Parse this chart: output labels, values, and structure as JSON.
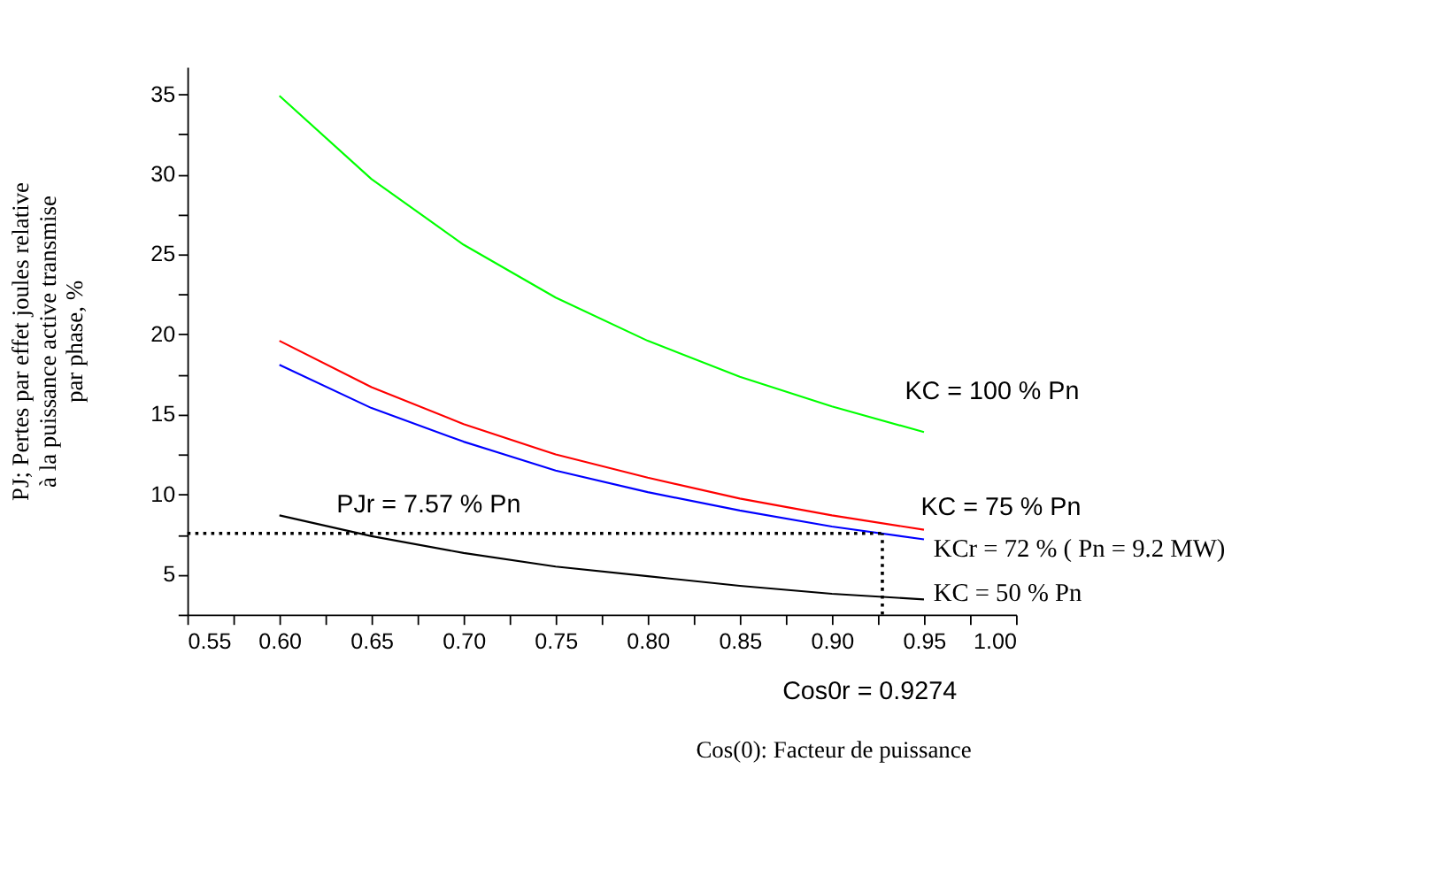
{
  "chart_data": {
    "type": "line",
    "xlabel": "Cos(0): Facteur de puissance",
    "ylabel": "PJ; Pertes par effet joules relative\nà la puissance active transmise\npar phase, %",
    "x": [
      0.6,
      0.65,
      0.7,
      0.75,
      0.8,
      0.85,
      0.9,
      0.95
    ],
    "series": [
      {
        "name": "KC = 100 % Pn",
        "color": "#00ff00",
        "values": [
          34.9,
          29.7,
          25.6,
          22.3,
          19.6,
          17.35,
          15.5,
          13.9
        ]
      },
      {
        "name": "KC = 75 % Pn",
        "color": "#ff0000",
        "values": [
          19.6,
          16.7,
          14.4,
          12.5,
          11.05,
          9.75,
          8.7,
          7.8
        ]
      },
      {
        "name": "KCr = 72 % ( Pn = 9.2 MW)",
        "color": "#0000ff",
        "values": [
          18.1,
          15.4,
          13.3,
          11.5,
          10.15,
          9.0,
          8.0,
          7.2
        ]
      },
      {
        "name": "KC = 50 % Pn",
        "color": "#000000",
        "values": [
          8.7,
          7.4,
          6.35,
          5.5,
          4.9,
          4.3,
          3.8,
          3.45
        ]
      }
    ],
    "xlim": [
      0.55,
      1.0
    ],
    "xticks": [
      {
        "value": 0.55,
        "label": "0.55"
      },
      {
        "value": 0.575,
        "label": null
      },
      {
        "value": 0.6,
        "label": "0.60"
      },
      {
        "value": 0.625,
        "label": null
      },
      {
        "value": 0.65,
        "label": "0.65"
      },
      {
        "value": 0.675,
        "label": null
      },
      {
        "value": 0.7,
        "label": "0.70"
      },
      {
        "value": 0.725,
        "label": null
      },
      {
        "value": 0.75,
        "label": "0.75"
      },
      {
        "value": 0.775,
        "label": null
      },
      {
        "value": 0.8,
        "label": "0.80"
      },
      {
        "value": 0.825,
        "label": null
      },
      {
        "value": 0.85,
        "label": "0.85"
      },
      {
        "value": 0.875,
        "label": null
      },
      {
        "value": 0.9,
        "label": "0.90"
      },
      {
        "value": 0.925,
        "label": null
      },
      {
        "value": 0.95,
        "label": "0.95"
      },
      {
        "value": 0.975,
        "label": null
      },
      {
        "value": 1.0,
        "label": "1.00"
      }
    ],
    "ylim": [
      2.5,
      36.7
    ],
    "yticks": [
      {
        "value": 2.5,
        "label": null
      },
      5,
      {
        "value": 7.5,
        "label": null
      },
      10,
      {
        "value": 12.5,
        "label": null
      },
      15,
      {
        "value": 17.5,
        "label": null
      },
      20,
      {
        "value": 22.5,
        "label": null
      },
      25,
      {
        "value": 27.5,
        "label": null
      },
      30,
      {
        "value": 32.5,
        "label": null
      },
      35
    ],
    "ref_lines": [
      {
        "axis": "y",
        "value": 7.57,
        "label": "PJr = 7.57 % Pn",
        "line_style": "dotted",
        "color": "#000000"
      },
      {
        "axis": "x",
        "value": 0.9274,
        "label": "Cos0r = 0.9274",
        "line_style": "dotted",
        "color": "#000000"
      }
    ],
    "legend": false,
    "grid": false,
    "marker": "none",
    "line_style": "solid"
  }
}
